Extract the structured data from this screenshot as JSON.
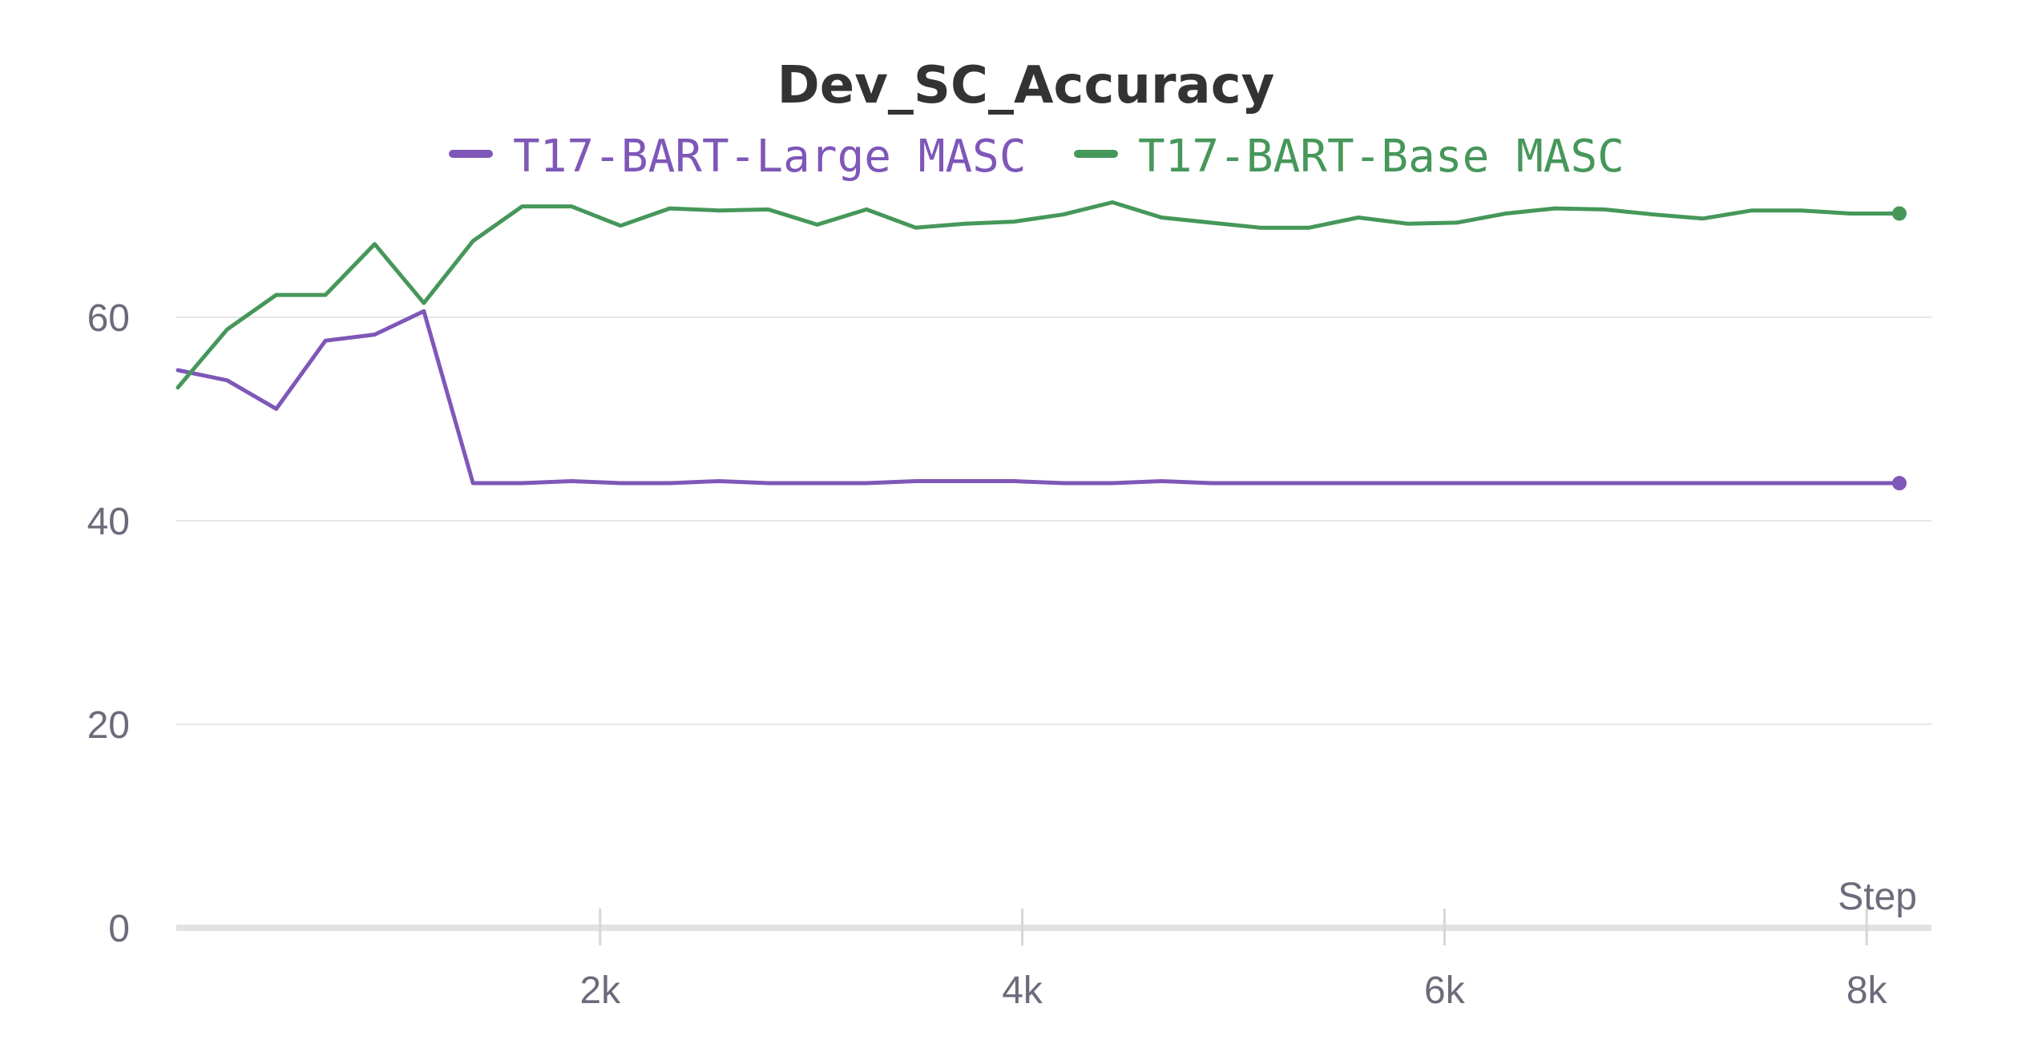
{
  "chart_data": {
    "type": "line",
    "title": "Dev_SC_Accuracy",
    "xlabel": "Step",
    "ylabel": "",
    "xlim": [
      0,
      8200
    ],
    "ylim": [
      0,
      70
    ],
    "x_ticks": [
      2000,
      4000,
      6000,
      8000
    ],
    "x_tick_labels": [
      "2k",
      "4k",
      "6k",
      "8k"
    ],
    "y_ticks": [
      0,
      20,
      40,
      60
    ],
    "y_tick_labels": [
      "0",
      "20",
      "40",
      "60"
    ],
    "grid": true,
    "legend_position": "top-center",
    "x": [
      0,
      233,
      466,
      699,
      932,
      1165,
      1398,
      1631,
      1864,
      2097,
      2330,
      2563,
      2796,
      3029,
      3262,
      3495,
      3728,
      3961,
      4194,
      4427,
      4660,
      4893,
      5126,
      5359,
      5592,
      5825,
      6058,
      6291,
      6524,
      6757,
      6990,
      7223,
      7456,
      7689,
      7922,
      8155
    ],
    "series": [
      {
        "name": "T17-BART-Large MASC",
        "color": "#7e57b8",
        "values": [
          54.8,
          53.8,
          51.0,
          57.7,
          58.3,
          60.6,
          43.7,
          43.7,
          43.9,
          43.7,
          43.7,
          43.9,
          43.7,
          43.7,
          43.7,
          43.9,
          43.9,
          43.9,
          43.7,
          43.7,
          43.9,
          43.7,
          43.7,
          43.7,
          43.7,
          43.7,
          43.7,
          43.7,
          43.7,
          43.7,
          43.7,
          43.7,
          43.7,
          43.7,
          43.7,
          43.7
        ]
      },
      {
        "name": "T17-BART-Base MASC",
        "color": "#46975a",
        "values": [
          53.1,
          58.8,
          62.2,
          62.2,
          67.2,
          61.4,
          67.5,
          70.9,
          70.9,
          69.0,
          70.7,
          70.5,
          70.6,
          69.1,
          70.6,
          68.8,
          69.2,
          69.4,
          70.1,
          71.3,
          69.8,
          69.3,
          68.8,
          68.8,
          69.8,
          69.2,
          69.3,
          70.2,
          70.7,
          70.6,
          70.1,
          69.7,
          70.5,
          70.5,
          70.2,
          70.2
        ]
      }
    ]
  }
}
